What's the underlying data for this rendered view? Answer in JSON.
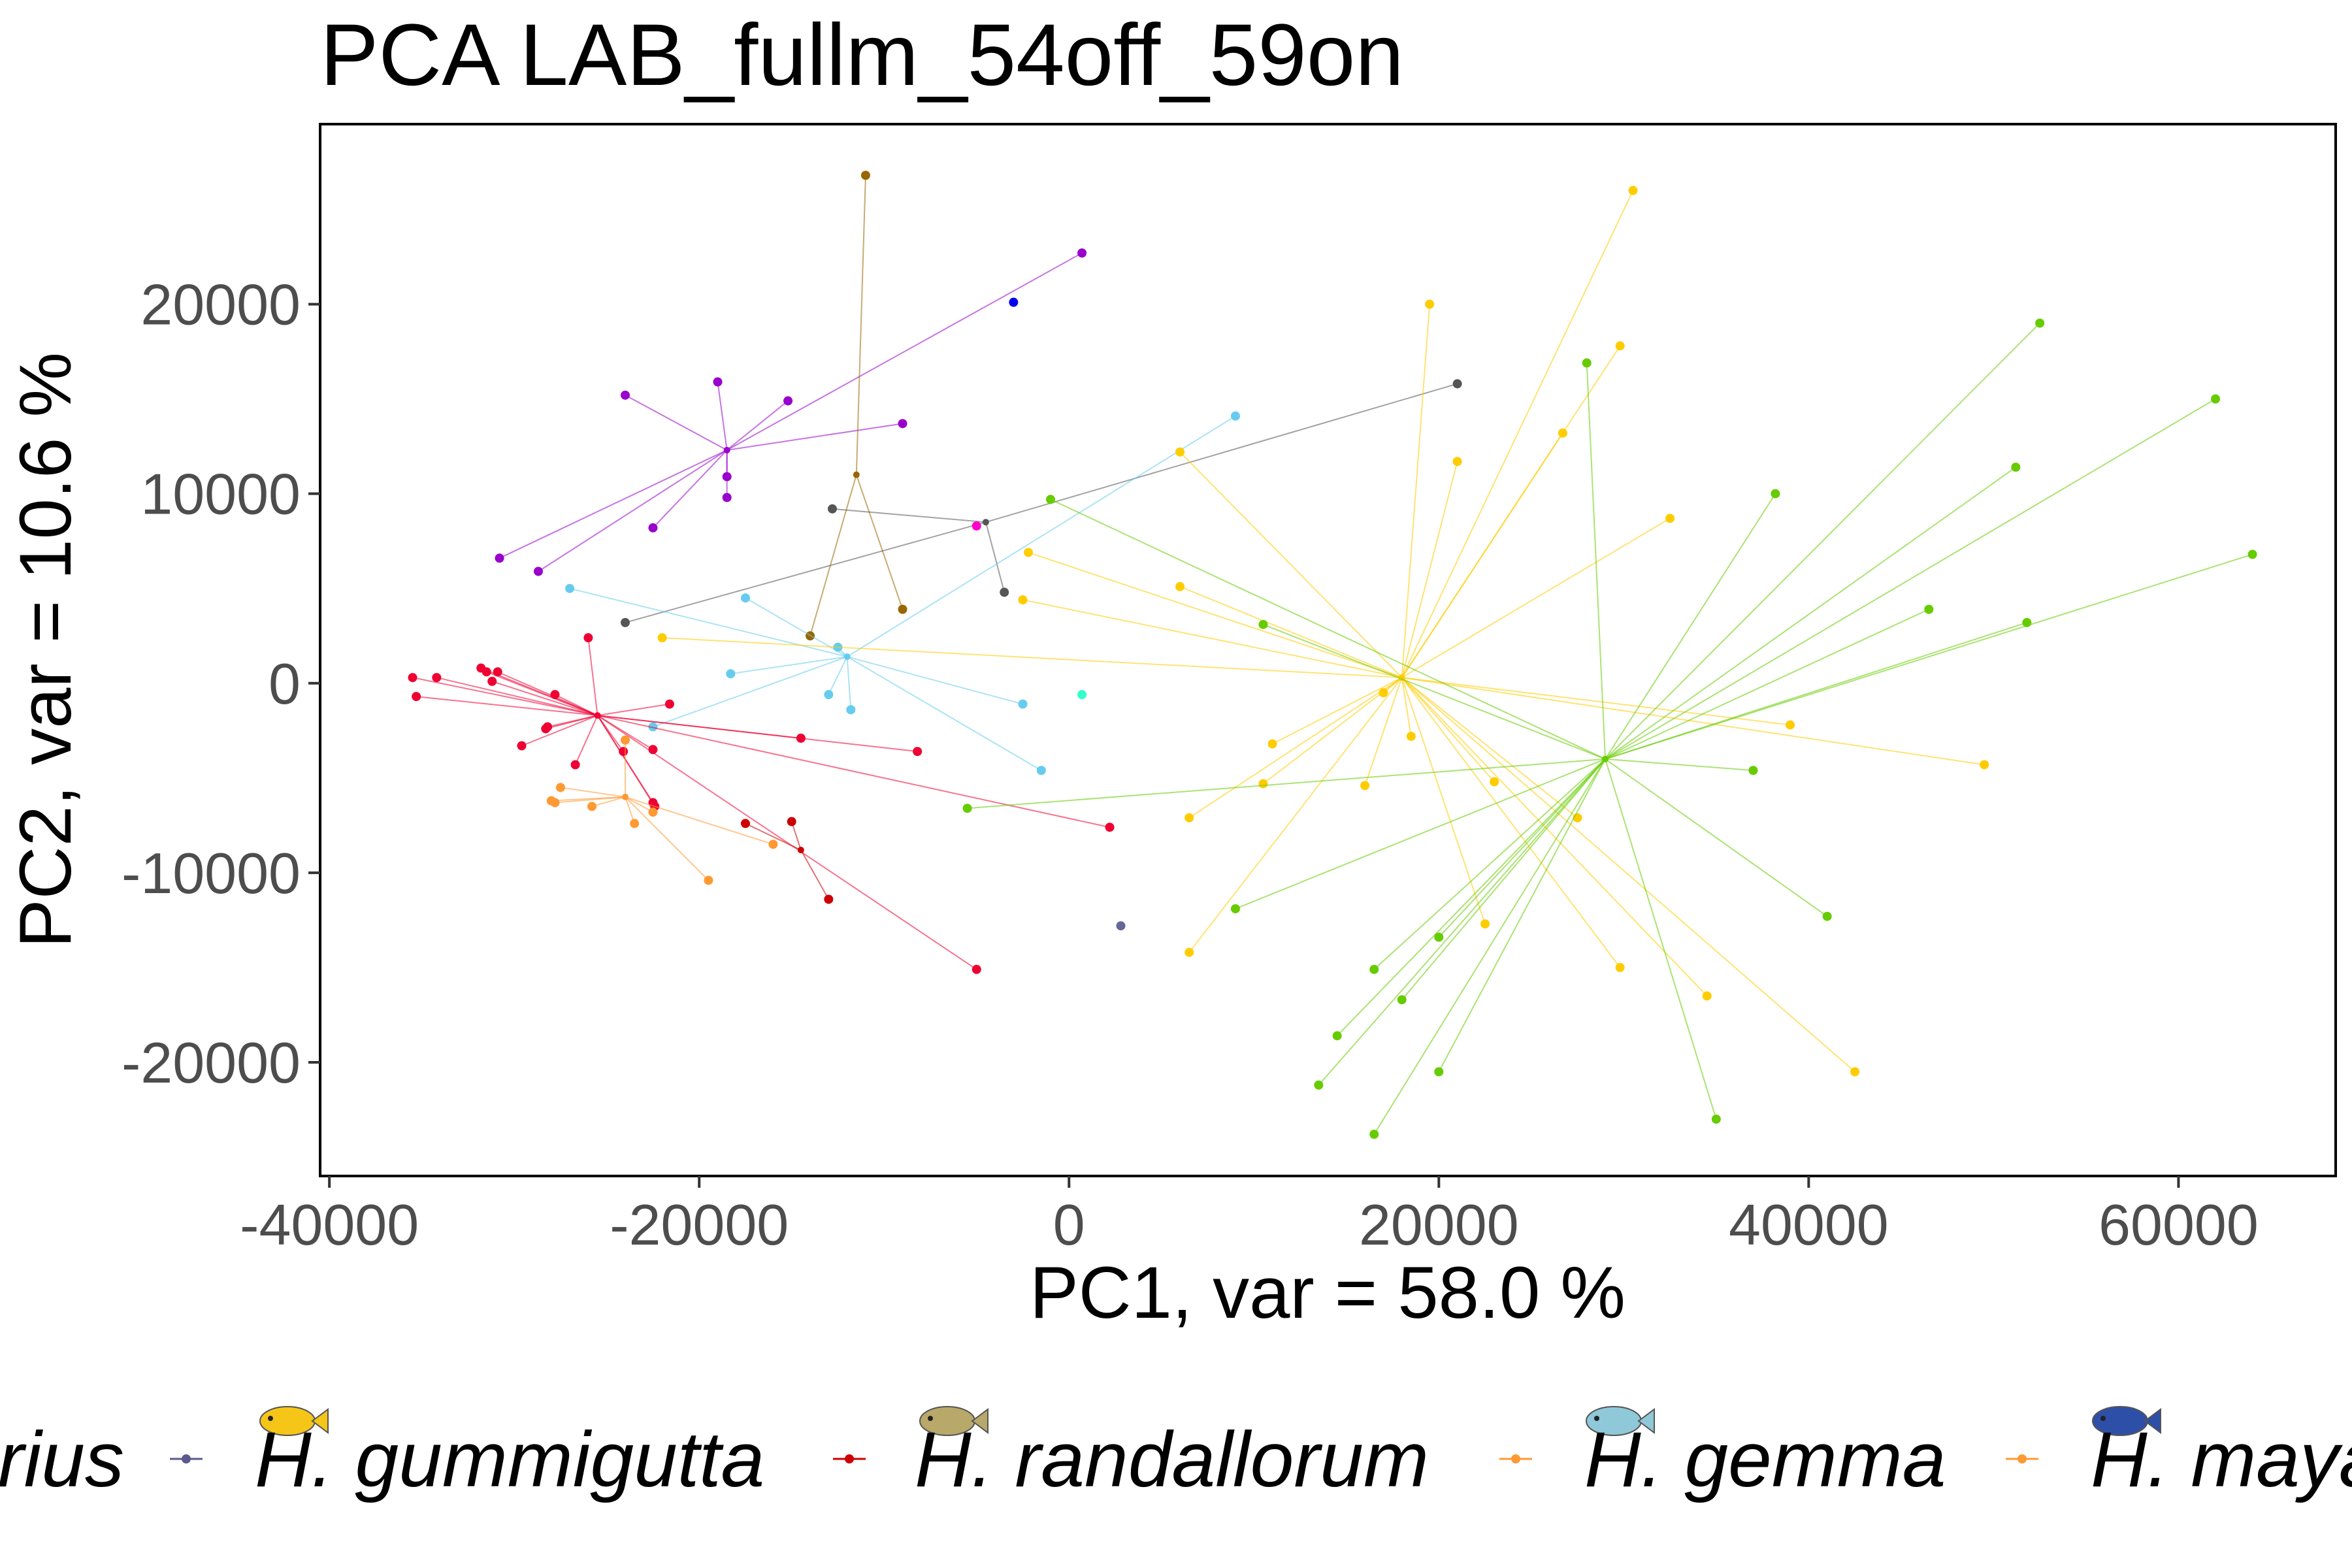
{
  "chart_data": {
    "type": "scatter",
    "title": "PCA LAB_fullm_54off_59on",
    "xlabel": "PC1, var =  58.0 %",
    "ylabel": "PC2, var = 10.6 %",
    "xlim": [
      -40500,
      68500
    ],
    "ylim": [
      -26000,
      29500
    ],
    "x_ticks": [
      -40000,
      -20000,
      0,
      20000,
      40000,
      60000
    ],
    "x_tick_labels": [
      "-40000",
      "-20000",
      "0",
      "20000",
      "40000",
      "60000"
    ],
    "y_ticks": [
      -20000,
      -10000,
      0,
      10000,
      20000
    ],
    "y_tick_labels": [
      "-20000",
      "-10000",
      "0",
      "10000",
      "20000"
    ],
    "grid": false,
    "legend_position": "bottom",
    "legend": [
      {
        "label": "rius",
        "color": "#ff00ff",
        "icon": "fish-icon-none"
      },
      {
        "label": "H. gummigutta",
        "color": "#5a5a8c",
        "icon": "yellow-fish-icon"
      },
      {
        "label": "H. randallorum",
        "color": "#cc0000",
        "icon": "olive-fish-icon"
      },
      {
        "label": "H. gemma",
        "color": "#ff9933",
        "icon": "teal-fish-icon"
      },
      {
        "label": "H. maya",
        "color": "#ff9933",
        "icon": "blue-fish-icon"
      }
    ],
    "series": [
      {
        "color": "#9900cc",
        "centroid": [
          -18500,
          12300
        ],
        "points": [
          [
            -24000,
            15200
          ],
          [
            -19000,
            15900
          ],
          [
            -15200,
            14900
          ],
          [
            -18500,
            10900
          ],
          [
            -18500,
            9800
          ],
          [
            -22500,
            8200
          ],
          [
            -9000,
            13700
          ],
          [
            -30800,
            6600
          ],
          [
            -28700,
            5900
          ],
          [
            700,
            22700
          ]
        ]
      },
      {
        "color": "#996600",
        "centroid": [
          -11500,
          11000
        ],
        "points": [
          [
            -11000,
            26800
          ],
          [
            -14000,
            2500
          ],
          [
            -9000,
            3900
          ]
        ]
      },
      {
        "color": "#555555",
        "centroid": [
          -4500,
          8500
        ],
        "points": [
          [
            -12800,
            9200
          ],
          [
            -3500,
            4800
          ],
          [
            21000,
            15800
          ],
          [
            -24000,
            3200
          ]
        ]
      },
      {
        "color": "#66ccee",
        "centroid": [
          -12000,
          1400
        ],
        "points": [
          [
            -27000,
            5000
          ],
          [
            -17500,
            4500
          ],
          [
            -18300,
            500
          ],
          [
            -12500,
            1900
          ],
          [
            -13000,
            -600
          ],
          [
            -11800,
            -1400
          ],
          [
            -2500,
            -1100
          ],
          [
            -1500,
            -4600
          ],
          [
            9000,
            14100
          ],
          [
            -22500,
            -2300
          ]
        ]
      },
      {
        "color": "#ee0033",
        "centroid": [
          -25500,
          -1700
        ],
        "points": [
          [
            -35500,
            300
          ],
          [
            -35300,
            -700
          ],
          [
            -34200,
            300
          ],
          [
            -31800,
            800
          ],
          [
            -31500,
            600
          ],
          [
            -30900,
            600
          ],
          [
            -31200,
            100
          ],
          [
            -27800,
            -600
          ],
          [
            -28300,
            -2400
          ],
          [
            -28200,
            -2300
          ],
          [
            -29600,
            -3300
          ],
          [
            -26000,
            2400
          ],
          [
            -21600,
            -1100
          ],
          [
            -24100,
            -3600
          ],
          [
            -26700,
            -4300
          ],
          [
            -22500,
            -3500
          ],
          [
            -22500,
            -6300
          ],
          [
            -22400,
            -6500
          ],
          [
            -14500,
            -2900
          ],
          [
            -8200,
            -3600
          ],
          [
            2200,
            -7600
          ],
          [
            -5000,
            -15100
          ]
        ]
      },
      {
        "color": "#cc0000",
        "centroid": [
          -14500,
          -8800
        ],
        "points": [
          [
            -17500,
            -7400
          ],
          [
            -15000,
            -7300
          ],
          [
            -13000,
            -11400
          ]
        ]
      },
      {
        "color": "#ff9933",
        "centroid": [
          -24000,
          -6000
        ],
        "points": [
          [
            -24000,
            -3000
          ],
          [
            -27500,
            -5500
          ],
          [
            -27800,
            -6300
          ],
          [
            -28000,
            -6200
          ],
          [
            -25800,
            -6500
          ],
          [
            -23500,
            -7400
          ],
          [
            -22500,
            -6800
          ],
          [
            -19500,
            -10400
          ],
          [
            -16000,
            -8500
          ]
        ]
      },
      {
        "color": "#ffcc00",
        "centroid": [
          18000,
          300
        ],
        "points": [
          [
            30500,
            26000
          ],
          [
            19500,
            20000
          ],
          [
            29800,
            17800
          ],
          [
            21000,
            11700
          ],
          [
            26700,
            13200
          ],
          [
            6000,
            12200
          ],
          [
            32500,
            8700
          ],
          [
            -2200,
            6900
          ],
          [
            6000,
            5100
          ],
          [
            -2500,
            4400
          ],
          [
            -22000,
            2400
          ],
          [
            17000,
            -500
          ],
          [
            11000,
            -3200
          ],
          [
            10500,
            -5300
          ],
          [
            16000,
            -5400
          ],
          [
            18500,
            -2800
          ],
          [
            23000,
            -5200
          ],
          [
            39000,
            -2200
          ],
          [
            49500,
            -4300
          ],
          [
            6500,
            -7100
          ],
          [
            27500,
            -7100
          ],
          [
            22500,
            -12700
          ],
          [
            29800,
            -15000
          ],
          [
            34500,
            -16500
          ],
          [
            6500,
            -14200
          ],
          [
            42500,
            -20500
          ]
        ]
      },
      {
        "color": "#66cc00",
        "centroid": [
          29000,
          -4000
        ],
        "points": [
          [
            28000,
            16900
          ],
          [
            52500,
            19000
          ],
          [
            62000,
            15000
          ],
          [
            51200,
            11400
          ],
          [
            38200,
            10000
          ],
          [
            64000,
            6800
          ],
          [
            46500,
            3900
          ],
          [
            51800,
            3200
          ],
          [
            -1000,
            9700
          ],
          [
            10500,
            3100
          ],
          [
            -5500,
            -6600
          ],
          [
            37000,
            -4600
          ],
          [
            41000,
            -12300
          ],
          [
            9000,
            -11900
          ],
          [
            20000,
            -13400
          ],
          [
            16500,
            -15100
          ],
          [
            18000,
            -16700
          ],
          [
            14500,
            -18600
          ],
          [
            20000,
            -20500
          ],
          [
            13500,
            -21200
          ],
          [
            16500,
            -23800
          ],
          [
            35000,
            -23000
          ]
        ]
      },
      {
        "color": "#0000ee",
        "centroid": null,
        "points": [
          [
            -3000,
            20100
          ]
        ]
      },
      {
        "color": "#ff00cc",
        "centroid": null,
        "points": [
          [
            -5000,
            8300
          ]
        ]
      },
      {
        "color": "#33ffcc",
        "centroid": null,
        "points": [
          [
            700,
            -600
          ]
        ]
      },
      {
        "color": "#666699",
        "centroid": null,
        "points": [
          [
            2800,
            -12800
          ]
        ]
      }
    ]
  }
}
